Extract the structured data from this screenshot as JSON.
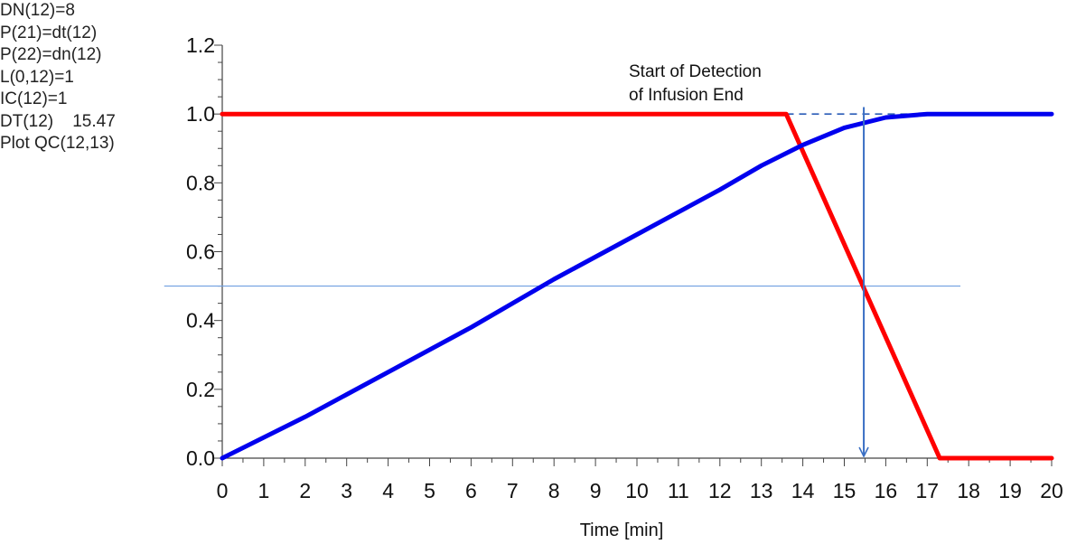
{
  "side_notes": [
    "DN(12)=8",
    "P(21)=dt(12)",
    "P(22)=dn(12)",
    "L(0,12)=1",
    "IC(12)=1",
    "DT(12)    15.47",
    "Plot QC(12,13)"
  ],
  "chart_data": {
    "type": "line",
    "title": "",
    "xlabel": "Time [min]",
    "ylabel": "",
    "xlim": [
      0,
      20
    ],
    "ylim": [
      0,
      1.2
    ],
    "x_ticks": [
      "0",
      "1",
      "2",
      "3",
      "4",
      "5",
      "6",
      "7",
      "8",
      "9",
      "10",
      "11",
      "12",
      "13",
      "14",
      "15",
      "16",
      "17",
      "18",
      "19",
      "20"
    ],
    "y_ticks": [
      "0.0",
      "0.2",
      "0.4",
      "0.6",
      "0.8",
      "1.0",
      "1.2"
    ],
    "grid": false,
    "legend": "none",
    "series": [
      {
        "color": "#ff0000",
        "points": [
          [
            0,
            1.0
          ],
          [
            13.6,
            1.0
          ],
          [
            17.3,
            0.0
          ],
          [
            20,
            0.0
          ]
        ]
      },
      {
        "color": "#0000ee",
        "points": [
          [
            0,
            0.0
          ],
          [
            2,
            0.12
          ],
          [
            4,
            0.25
          ],
          [
            6,
            0.38
          ],
          [
            8,
            0.52
          ],
          [
            10,
            0.65
          ],
          [
            12,
            0.78
          ],
          [
            13,
            0.85
          ],
          [
            14,
            0.91
          ],
          [
            15,
            0.96
          ],
          [
            16,
            0.99
          ],
          [
            17,
            1.0
          ],
          [
            20,
            1.0
          ]
        ]
      }
    ],
    "reference_lines": [
      {
        "kind": "horizontal",
        "y": 1.0,
        "x_from": 7.2,
        "x_to": 17.6,
        "style": "dashed",
        "color": "#2b5cb8"
      },
      {
        "kind": "horizontal",
        "y": 0.5,
        "x_from": -1.4,
        "x_to": 17.8,
        "style": "solid",
        "color": "#6f9fe0"
      }
    ],
    "annotation": {
      "lines": [
        "Start of Detection",
        "of Infusion End"
      ],
      "arrow_x": 15.47,
      "arrow_from_y": 1.02,
      "arrow_to_y": 0.0,
      "color": "#3a6fc4"
    }
  }
}
